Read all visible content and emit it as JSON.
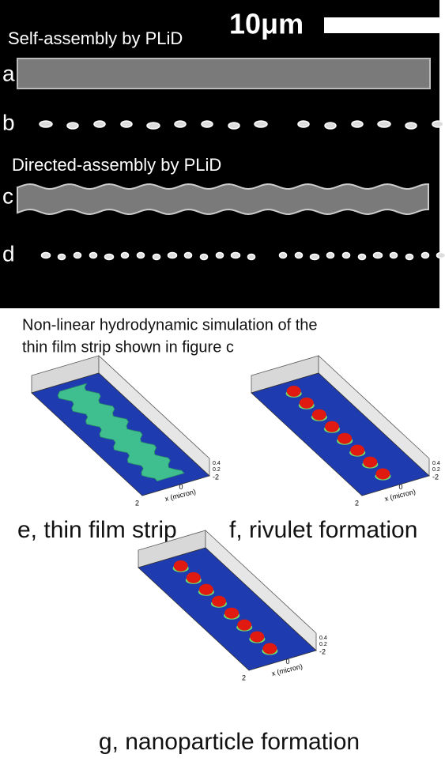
{
  "scale_bar": "10μm",
  "sections": [
    {
      "title": "Self-assembly by PLiD",
      "panels": [
        "a",
        "b"
      ]
    },
    {
      "title": "Directed-assembly by PLiD",
      "panels": [
        "c",
        "d"
      ]
    }
  ],
  "simulation_caption": [
    "Non-linear hydrodynamic simulation of the",
    "thin film strip shown in figure c"
  ],
  "axis_labels": {
    "z_ticks": [
      "0.4",
      "0.2"
    ],
    "x_tick": "0",
    "y_ticks": [
      "-2",
      "2"
    ],
    "x_title": "x (micron)"
  },
  "simulations": [
    {
      "label": "e, thin film strip"
    },
    {
      "label": "f, rivulet formation"
    },
    {
      "label": "g, nanoparticle formation"
    }
  ]
}
